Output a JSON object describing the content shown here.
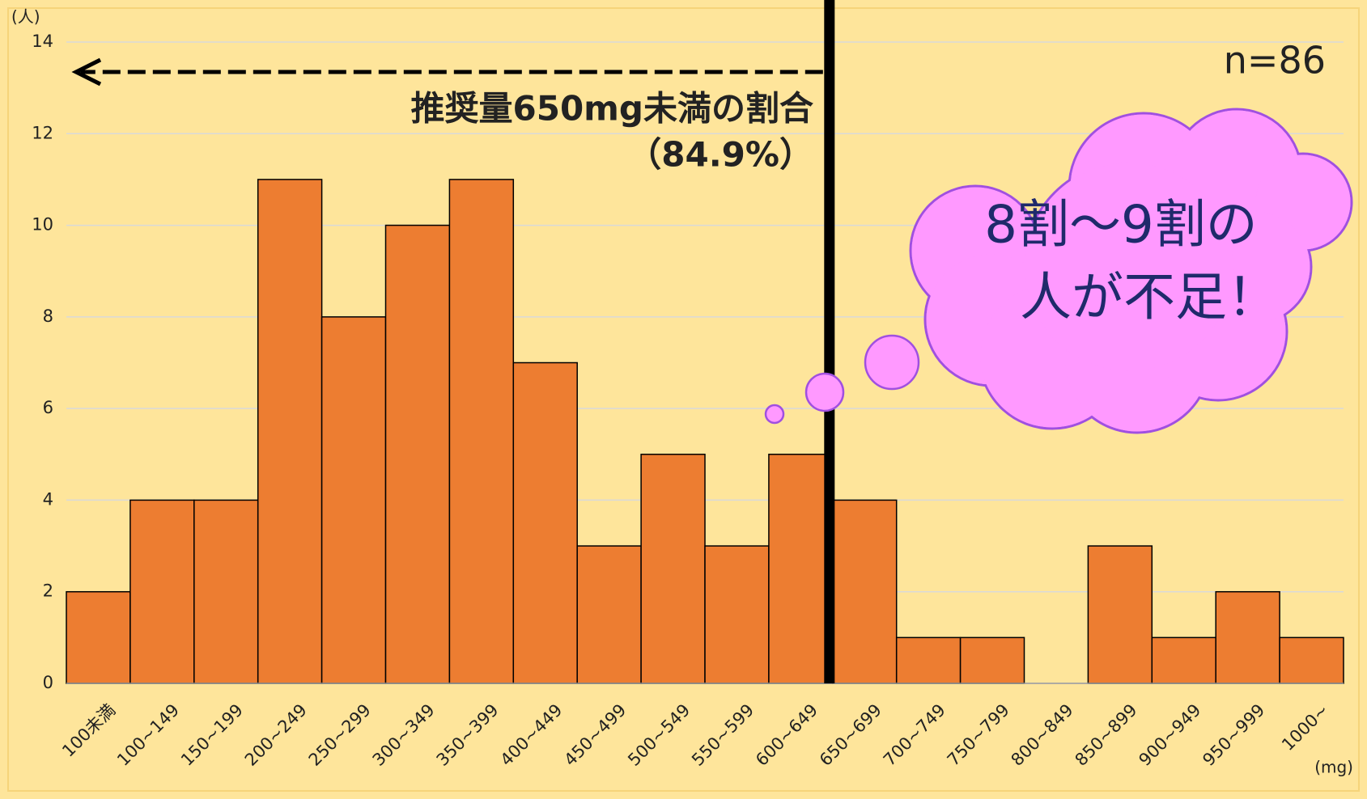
{
  "chart_data": {
    "type": "bar",
    "y_label": "(人)",
    "x_label": "(mg)",
    "categories": [
      "100未満",
      "100~149",
      "150~199",
      "200~249",
      "250~299",
      "300~349",
      "350~399",
      "400~449",
      "450~499",
      "500~549",
      "550~599",
      "600~649",
      "650~699",
      "700~749",
      "750~799",
      "800~849",
      "850~899",
      "900~949",
      "950~999",
      "1000~"
    ],
    "values": [
      2,
      4,
      4,
      11,
      8,
      10,
      11,
      7,
      3,
      5,
      3,
      5,
      4,
      1,
      1,
      0,
      3,
      1,
      2,
      1
    ],
    "color": "#ed7d31",
    "ylim": [
      0,
      14
    ],
    "yticks": [
      0,
      2,
      4,
      6,
      8,
      10,
      12,
      14
    ],
    "grid": true,
    "annotations": [
      "推奨量650mg未満の割合",
      "（84.9%）",
      "n=86",
      "8割〜9割の",
      "人が不足！"
    ]
  }
}
